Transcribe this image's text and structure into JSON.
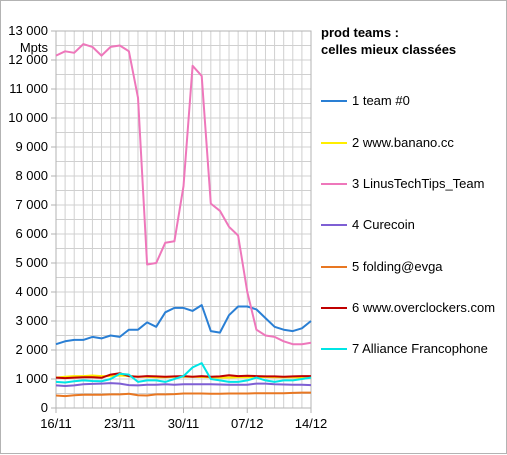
{
  "chart_data": {
    "type": "line",
    "title": "prod teams :",
    "subtitle": "celles mieux classées",
    "ylabel": "Mpts",
    "ylim": [
      0,
      13000
    ],
    "y_ticks": [
      0,
      1000,
      2000,
      3000,
      4000,
      5000,
      6000,
      7000,
      8000,
      9000,
      10000,
      11000,
      12000,
      13000
    ],
    "y_tick_labels": [
      "0",
      "1 000",
      "2 000",
      "3 000",
      "4 000",
      "5 000",
      "6 000",
      "7 000",
      "8 000",
      "9 000",
      "10 000",
      "11 000",
      "12 000",
      "13 000"
    ],
    "x_tick_labels": [
      "16/11",
      "23/11",
      "30/11",
      "07/12",
      "14/12"
    ],
    "x_tick_positions": [
      0,
      7,
      14,
      21,
      28
    ],
    "grid": true,
    "legend_position": "right",
    "series": [
      {
        "name": "1 team #0",
        "color": "#2a7fd4",
        "values": [
          2200,
          2300,
          2350,
          2350,
          2450,
          2400,
          2500,
          2450,
          2700,
          2700,
          2950,
          2800,
          3300,
          3450,
          3450,
          3350,
          3550,
          2650,
          2600,
          3200,
          3500,
          3500,
          3400,
          3100,
          2800,
          2700,
          2650,
          2750,
          3000
        ]
      },
      {
        "name": "2 www.banano.cc",
        "color": "#ffee00",
        "values": [
          1050,
          1080,
          1100,
          1100,
          1120,
          1100,
          1100,
          1120,
          1100,
          1080,
          1080,
          1060,
          1060,
          1080,
          1080,
          1080,
          1070,
          1060,
          1050,
          1050,
          1060,
          1060,
          1070,
          1070,
          1060,
          1060,
          1060,
          1050,
          1050
        ]
      },
      {
        "name": "3 LinusTechTips_Team",
        "color": "#ee77bb",
        "values": [
          12150,
          12300,
          12250,
          12550,
          12450,
          12150,
          12450,
          12500,
          12300,
          10700,
          4950,
          5000,
          5700,
          5750,
          7650,
          11800,
          11450,
          7050,
          6800,
          6250,
          5950,
          4000,
          2700,
          2500,
          2450,
          2300,
          2200,
          2200,
          2250
        ]
      },
      {
        "name": "4 Curecoin",
        "color": "#7e5fd4",
        "values": [
          780,
          760,
          780,
          820,
          830,
          840,
          860,
          840,
          790,
          780,
          800,
          800,
          820,
          800,
          820,
          820,
          820,
          820,
          810,
          800,
          800,
          800,
          840,
          840,
          820,
          810,
          800,
          800,
          790
        ]
      },
      {
        "name": "5 folding@evga",
        "color": "#e87722",
        "values": [
          430,
          410,
          440,
          460,
          460,
          460,
          470,
          470,
          490,
          440,
          430,
          470,
          470,
          480,
          500,
          500,
          500,
          490,
          490,
          500,
          500,
          500,
          510,
          510,
          510,
          510,
          520,
          530,
          530
        ]
      },
      {
        "name": "6 www.overclockers.com",
        "color": "#c00000",
        "values": [
          1050,
          1030,
          1050,
          1060,
          1060,
          1040,
          1150,
          1200,
          1100,
          1080,
          1100,
          1090,
          1080,
          1090,
          1100,
          1080,
          1100,
          1080,
          1090,
          1130,
          1100,
          1110,
          1100,
          1090,
          1090,
          1080,
          1090,
          1100,
          1100
        ]
      },
      {
        "name": "7 Alliance Francophone",
        "color": "#00e5e5",
        "values": [
          900,
          880,
          920,
          950,
          930,
          920,
          1000,
          1180,
          1150,
          900,
          950,
          950,
          900,
          1000,
          1100,
          1400,
          1550,
          1000,
          950,
          900,
          900,
          950,
          1050,
          950,
          900,
          950,
          950,
          1000,
          1050
        ]
      }
    ]
  }
}
